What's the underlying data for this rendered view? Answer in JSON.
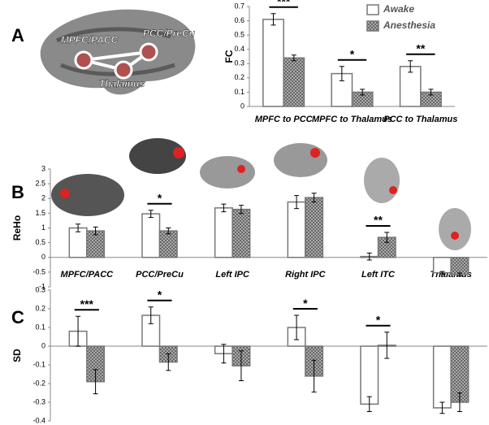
{
  "chart_data": [
    {
      "type": "bar",
      "panel": "A",
      "y_label": "FC",
      "categories": [
        "MPFC to PCC",
        "MPFC to Thalamus",
        "PCC to Thalamus"
      ],
      "series": [
        {
          "name": "Awake",
          "color": "#ffffff",
          "hatch": false,
          "values": [
            0.61,
            0.23,
            0.28
          ],
          "errors": [
            0.04,
            0.05,
            0.04
          ]
        },
        {
          "name": "Anesthesia",
          "color": "#8c8c8c",
          "hatch": true,
          "values": [
            0.34,
            0.1,
            0.1
          ],
          "errors": [
            0.02,
            0.02,
            0.02
          ]
        }
      ],
      "significance": [
        "***",
        "*",
        "**"
      ],
      "ylim": [
        0,
        0.7
      ],
      "yticks": [
        0,
        0.1,
        0.2,
        0.3,
        0.4,
        0.5,
        0.6,
        0.7
      ],
      "legend": "top-right",
      "annotations": [
        "MPFC/PACC",
        "PCC/PreCu",
        "Thalamus"
      ]
    },
    {
      "type": "bar",
      "panel": "B",
      "y_label": "ReHo",
      "categories": [
        "MPFC/PACC",
        "PCC/PreCu",
        "Left IPC",
        "Right IPC",
        "Left ITC",
        "Thalamus"
      ],
      "series": [
        {
          "name": "Awake",
          "color": "#ffffff",
          "hatch": false,
          "values": [
            1.0,
            1.48,
            1.68,
            1.88,
            0.03,
            -0.52
          ],
          "errors": [
            0.13,
            0.12,
            0.13,
            0.22,
            0.12,
            0.04
          ]
        },
        {
          "name": "Anesthesia",
          "color": "#8c8c8c",
          "hatch": true,
          "values": [
            0.9,
            0.9,
            1.63,
            2.03,
            0.68,
            -0.58
          ],
          "errors": [
            0.13,
            0.1,
            0.14,
            0.15,
            0.17,
            0.05
          ]
        }
      ],
      "significance": [
        null,
        "*",
        null,
        null,
        "**",
        null
      ],
      "ylim": [
        -1,
        3
      ],
      "yticks": [
        -1,
        -0.5,
        0,
        0.5,
        1,
        1.5,
        2,
        2.5,
        3
      ]
    },
    {
      "type": "bar",
      "panel": "C",
      "y_label": "SD",
      "series": [
        {
          "name": "Awake",
          "color": "#ffffff",
          "hatch": false,
          "values": [
            0.08,
            0.165,
            -0.04,
            0.1,
            -0.31,
            -0.33
          ],
          "errors": [
            0.08,
            0.045,
            0.05,
            0.065,
            0.04,
            0.03
          ]
        },
        {
          "name": "Anesthesia",
          "color": "#8c8c8c",
          "hatch": true,
          "values": [
            -0.19,
            -0.085,
            -0.105,
            -0.16,
            0.005,
            -0.3
          ],
          "errors": [
            0.065,
            0.045,
            0.08,
            0.085,
            0.07,
            0.05
          ]
        }
      ],
      "significance": [
        "***",
        "*",
        null,
        "*",
        "*",
        null
      ],
      "ylim": [
        -0.4,
        0.3
      ],
      "yticks": [
        -0.4,
        -0.3,
        -0.2,
        -0.1,
        0,
        0.1,
        0.2,
        0.3
      ]
    }
  ]
}
